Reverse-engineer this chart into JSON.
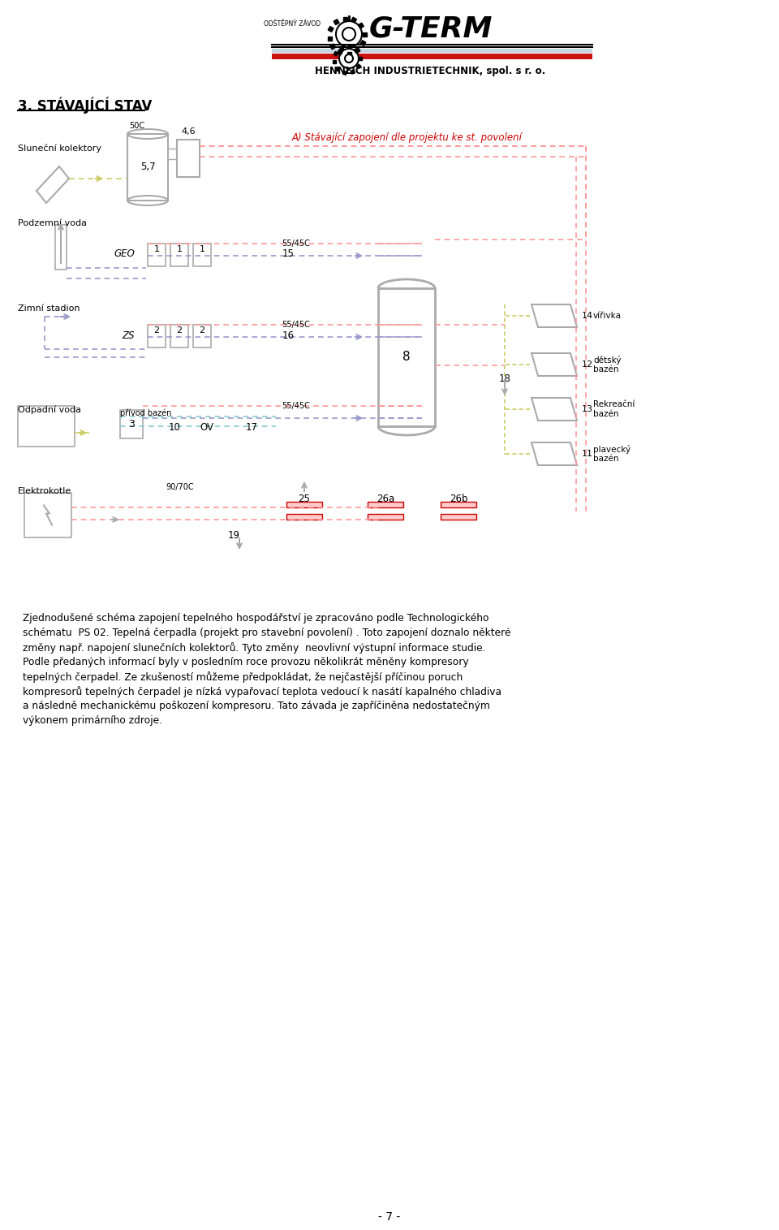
{
  "page_width": 9.6,
  "page_height": 15.15,
  "bg_color": "#ffffff",
  "title_section": "3. STÁVAJÍCÍ STAV",
  "red_note": "A) Stávající zapojení dle projektu ke st. povolení",
  "labels": {
    "slunecni": "Sluneční kolektory",
    "podzemni": "Podzemní voda",
    "zimni": "Zimní stadion",
    "odpadni": "Odpadní voda",
    "elektrokotle": "Elektrokotle",
    "privod_bazen": "přívod bazén"
  },
  "body_text": [
    "Zjednodušené schéma zapojení tepelného hospodářství je zpracováno podle Technologického",
    "schématu  PS 02. Tepelná čerpadla (projekt pro stavební povolení) . Toto zapojení doznalo některé",
    "změny např. napojení slunečních kolektorů. Tyto změny  neovlivní výstupní informace studie.",
    "Podle předaných informací byly v posledním roce provozu několikrát měněny kompresory",
    "tepelných čerpadel. Ze zkušeností můžeme předpokládat, že nejčastější příčinou poruch",
    "kompresorů tepelných čerpadel je nízká vypařovací teplota vedoucí k nasátí kapalného chladiva",
    "a následně mechanickému poškození kompresoru. Tato závada je zapříčiněna nedostatečným",
    "výkonem primárního zdroje."
  ],
  "page_number": "- 7 -"
}
